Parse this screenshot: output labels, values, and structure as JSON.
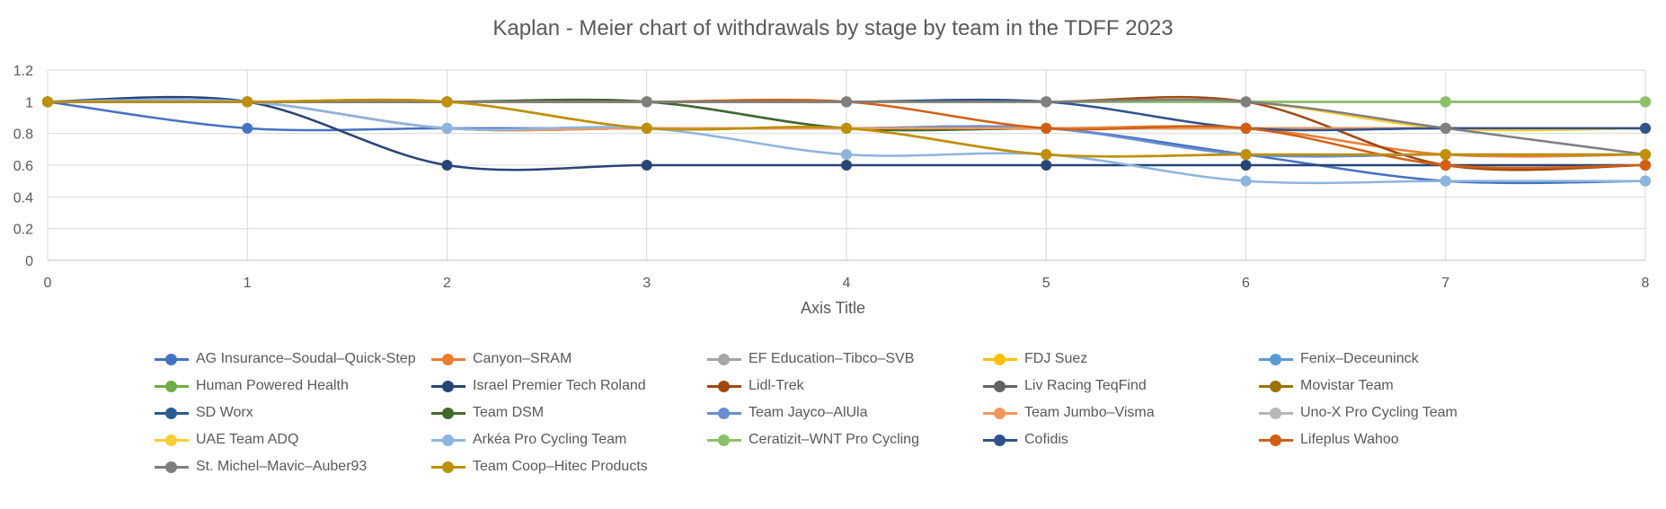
{
  "chart_data": {
    "type": "line",
    "title": "Kaplan - Meier chart of withdrawals by stage by team in the TDFF 2023",
    "xlabel": "Axis Title",
    "ylabel": "",
    "x": [
      0,
      1,
      2,
      3,
      4,
      5,
      6,
      7,
      8
    ],
    "xlim": [
      0,
      8
    ],
    "ylim": [
      0,
      1.2
    ],
    "y_ticks": [
      "0",
      "0.2",
      "0.4",
      "0.6",
      "0.8",
      "1",
      "1.2"
    ],
    "x_ticks": [
      "0",
      "1",
      "2",
      "3",
      "4",
      "5",
      "6",
      "7",
      "8"
    ],
    "grid": "vertical and horizontal",
    "smooth": true,
    "legend_position": "bottom",
    "series": [
      {
        "name": "AG Insurance–Soudal–Quick-Step",
        "color": "#4472C4",
        "values": [
          1,
          0.833,
          0.833,
          0.833,
          0.833,
          0.833,
          0.667,
          0.5,
          0.5
        ]
      },
      {
        "name": "Canyon–SRAM",
        "color": "#ED7D31",
        "values": [
          1,
          1,
          0.833,
          0.833,
          0.833,
          0.833,
          0.833,
          0.667,
          0.667
        ]
      },
      {
        "name": "EF Education–Tibco–SVB",
        "color": "#A5A5A5",
        "values": [
          1,
          1,
          1,
          1,
          1,
          1,
          1,
          1,
          1
        ]
      },
      {
        "name": "FDJ Suez",
        "color": "#FFC000",
        "values": [
          1,
          1,
          1,
          1,
          1,
          1,
          1,
          0.833,
          0.833
        ]
      },
      {
        "name": "Fenix–Deceuninck",
        "color": "#5B9BD5",
        "values": [
          1,
          1,
          0.833,
          0.833,
          0.833,
          0.833,
          0.833,
          0.833,
          0.833
        ]
      },
      {
        "name": "Human Powered Health",
        "color": "#70AD47",
        "values": [
          1,
          1,
          1,
          1,
          1,
          1,
          1,
          1,
          1
        ]
      },
      {
        "name": "Israel Premier Tech Roland",
        "color": "#264478",
        "values": [
          1,
          1,
          0.6,
          0.6,
          0.6,
          0.6,
          0.6,
          0.6,
          0.6
        ]
      },
      {
        "name": "Lidl-Trek",
        "color": "#9E480E",
        "values": [
          1,
          1,
          1,
          1,
          1,
          1,
          1,
          0.6,
          0.6
        ]
      },
      {
        "name": "Liv Racing TeqFind",
        "color": "#636363",
        "values": [
          1,
          1,
          1,
          1,
          1,
          1,
          1,
          1,
          1
        ]
      },
      {
        "name": "Movistar Team",
        "color": "#997300",
        "values": [
          1,
          1,
          1,
          0.833,
          0.833,
          0.667,
          0.667,
          0.667,
          0.667
        ]
      },
      {
        "name": "SD Worx",
        "color": "#255E91",
        "values": [
          1,
          1,
          1,
          1,
          0.833,
          0.833,
          0.833,
          0.833,
          0.833
        ]
      },
      {
        "name": "Team DSM",
        "color": "#43682B",
        "values": [
          1,
          1,
          1,
          1,
          0.833,
          0.833,
          0.833,
          0.833,
          0.833
        ]
      },
      {
        "name": "Team Jayco–AlUla",
        "color": "#698ED0",
        "values": [
          1,
          1,
          0.833,
          0.833,
          0.833,
          0.833,
          0.667,
          0.667,
          0.667
        ]
      },
      {
        "name": "Team Jumbo–Visma",
        "color": "#F1975A",
        "values": [
          1,
          1,
          0.833,
          0.833,
          0.833,
          0.833,
          0.833,
          0.833,
          0.833
        ]
      },
      {
        "name": "Uno-X Pro Cycling Team",
        "color": "#B7B7B7",
        "values": [
          1,
          1,
          1,
          1,
          1,
          1,
          1,
          1,
          1
        ]
      },
      {
        "name": "UAE Team ADQ",
        "color": "#FFCD33",
        "values": [
          1,
          1,
          1,
          1,
          1,
          1,
          1,
          0.833,
          0.833
        ]
      },
      {
        "name": "Arkéa Pro Cycling Team",
        "color": "#8CB5E0",
        "values": [
          1,
          1,
          0.833,
          0.833,
          0.667,
          0.667,
          0.5,
          0.5,
          0.5
        ]
      },
      {
        "name": "Ceratizit–WNT Pro Cycling",
        "color": "#8CC168",
        "values": [
          1,
          1,
          1,
          1,
          1,
          1,
          1,
          1,
          1
        ]
      },
      {
        "name": "Cofidis",
        "color": "#2F528F",
        "values": [
          1,
          1,
          1,
          1,
          1,
          1,
          0.833,
          0.833,
          0.833
        ]
      },
      {
        "name": "Lifeplus Wahoo",
        "color": "#D26012",
        "values": [
          1,
          1,
          1,
          1,
          1,
          0.833,
          0.833,
          0.6,
          0.6
        ]
      },
      {
        "name": "St. Michel–Mavic–Auber93",
        "color": "#7F7F7F",
        "values": [
          1,
          1,
          1,
          1,
          1,
          1,
          1,
          0.833,
          0.667
        ]
      },
      {
        "name": "Team Coop–Hitec Products",
        "color": "#BF9000",
        "values": [
          1,
          1,
          1,
          0.833,
          0.833,
          0.667,
          0.667,
          0.667,
          0.667
        ]
      }
    ]
  }
}
